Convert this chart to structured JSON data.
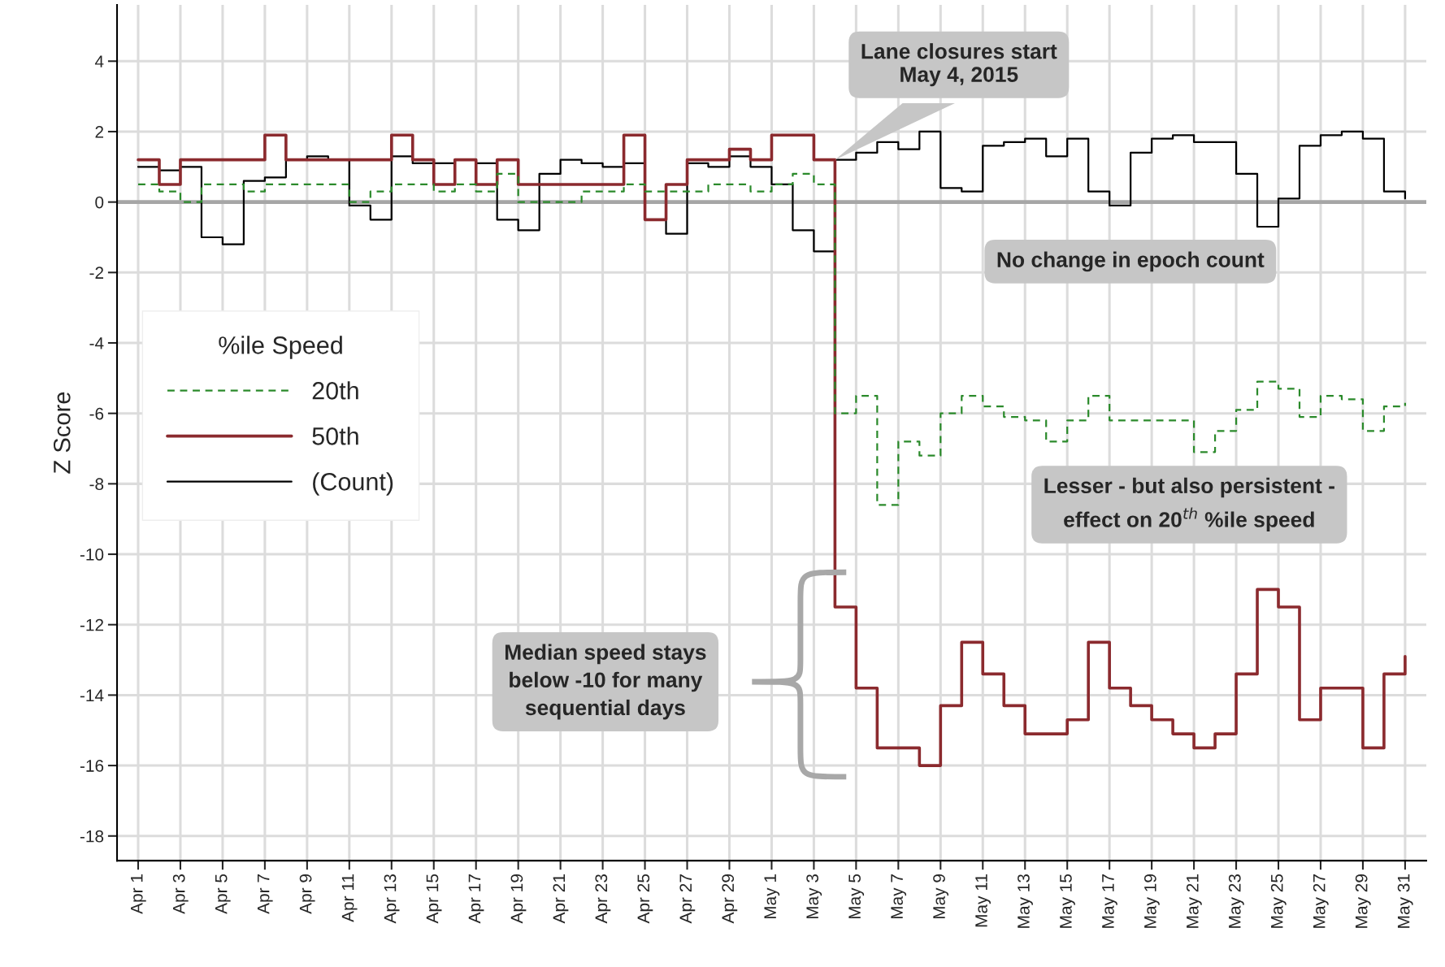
{
  "chart_data": {
    "type": "step",
    "ylabel": "Z Score",
    "legend_title": "%ile Speed",
    "x": [
      "2015-04-01",
      "2015-04-02",
      "2015-04-03",
      "2015-04-04",
      "2015-04-05",
      "2015-04-06",
      "2015-04-07",
      "2015-04-08",
      "2015-04-09",
      "2015-04-10",
      "2015-04-11",
      "2015-04-12",
      "2015-04-13",
      "2015-04-14",
      "2015-04-15",
      "2015-04-16",
      "2015-04-17",
      "2015-04-18",
      "2015-04-19",
      "2015-04-20",
      "2015-04-21",
      "2015-04-22",
      "2015-04-23",
      "2015-04-24",
      "2015-04-25",
      "2015-04-26",
      "2015-04-27",
      "2015-04-28",
      "2015-04-29",
      "2015-04-30",
      "2015-05-01",
      "2015-05-02",
      "2015-05-03",
      "2015-05-04",
      "2015-05-05",
      "2015-05-06",
      "2015-05-07",
      "2015-05-08",
      "2015-05-09",
      "2015-05-10",
      "2015-05-11",
      "2015-05-12",
      "2015-05-13",
      "2015-05-14",
      "2015-05-15",
      "2015-05-16",
      "2015-05-17",
      "2015-05-18",
      "2015-05-19",
      "2015-05-20",
      "2015-05-21",
      "2015-05-22",
      "2015-05-23",
      "2015-05-24",
      "2015-05-25",
      "2015-05-26",
      "2015-05-27",
      "2015-05-28",
      "2015-05-29",
      "2015-05-30",
      "2015-05-31"
    ],
    "series": [
      {
        "name": "20th",
        "color": "#2b8a2b",
        "line_style": "dashed",
        "values": [
          0.5,
          0.3,
          0.0,
          0.5,
          0.5,
          0.3,
          0.5,
          0.5,
          0.5,
          0.5,
          0.0,
          0.3,
          0.5,
          0.5,
          0.3,
          0.5,
          0.3,
          0.8,
          0.0,
          0.0,
          0.0,
          0.3,
          0.3,
          0.5,
          0.3,
          0.3,
          0.3,
          0.5,
          0.5,
          0.3,
          0.5,
          0.8,
          0.5,
          -6.0,
          -5.5,
          -8.6,
          -6.8,
          -7.2,
          -6.0,
          -5.5,
          -5.8,
          -6.1,
          -6.2,
          -6.8,
          -6.2,
          -5.5,
          -6.2,
          -6.2,
          -6.2,
          -6.2,
          -7.1,
          -6.5,
          -5.9,
          -5.1,
          -5.3,
          -6.1,
          -5.5,
          -5.6,
          -6.5,
          -5.8,
          -5.7
        ]
      },
      {
        "name": "50th",
        "color": "#8b2a2e",
        "line_style": "solid",
        "values": [
          1.2,
          0.5,
          1.2,
          1.2,
          1.2,
          1.2,
          1.9,
          1.2,
          1.2,
          1.2,
          1.2,
          1.2,
          1.9,
          1.2,
          0.5,
          1.2,
          0.5,
          1.2,
          0.5,
          0.5,
          0.5,
          0.5,
          0.5,
          1.9,
          -0.5,
          0.5,
          1.2,
          1.2,
          1.5,
          1.2,
          1.9,
          1.9,
          1.2,
          -11.5,
          -13.8,
          -15.5,
          -15.5,
          -16.0,
          -14.3,
          -12.5,
          -13.4,
          -14.3,
          -15.1,
          -15.1,
          -14.7,
          -12.5,
          -13.8,
          -14.3,
          -14.7,
          -15.1,
          -15.5,
          -15.1,
          -13.4,
          -11.0,
          -11.5,
          -14.7,
          -13.8,
          -13.8,
          -15.5,
          -13.4,
          -12.9
        ]
      },
      {
        "name": "(Count)",
        "color": "#000000",
        "line_style": "solid",
        "values": [
          1.0,
          0.9,
          1.0,
          -1.0,
          -1.2,
          0.6,
          0.7,
          1.2,
          1.3,
          1.2,
          -0.1,
          -0.5,
          1.3,
          1.1,
          1.1,
          1.2,
          1.1,
          -0.5,
          -0.8,
          0.8,
          1.2,
          1.1,
          1.0,
          1.1,
          -0.5,
          -0.9,
          1.1,
          1.0,
          1.3,
          1.0,
          0.5,
          -0.8,
          -1.4,
          1.2,
          1.4,
          1.7,
          1.5,
          2.0,
          0.4,
          0.3,
          1.6,
          1.7,
          1.8,
          1.3,
          1.8,
          0.3,
          -0.1,
          1.4,
          1.8,
          1.9,
          1.7,
          1.7,
          0.8,
          -0.7,
          0.1,
          1.6,
          1.9,
          2.0,
          1.8,
          0.3,
          0.1
        ]
      }
    ],
    "ylim": [
      -18.7,
      5.6
    ],
    "yticks": [
      -18,
      -16,
      -14,
      -12,
      -10,
      -8,
      -6,
      -4,
      -2,
      0,
      2,
      4
    ],
    "xlim": [
      "2015-03-31",
      "2015-06-01"
    ],
    "xticks": [
      {
        "value": "2015-04-01",
        "label": "Apr 1"
      },
      {
        "value": "2015-04-03",
        "label": "Apr 3"
      },
      {
        "value": "2015-04-05",
        "label": "Apr 5"
      },
      {
        "value": "2015-04-07",
        "label": "Apr 7"
      },
      {
        "value": "2015-04-09",
        "label": "Apr 9"
      },
      {
        "value": "2015-04-11",
        "label": "Apr 11"
      },
      {
        "value": "2015-04-13",
        "label": "Apr 13"
      },
      {
        "value": "2015-04-15",
        "label": "Apr 15"
      },
      {
        "value": "2015-04-17",
        "label": "Apr 17"
      },
      {
        "value": "2015-04-19",
        "label": "Apr 19"
      },
      {
        "value": "2015-04-21",
        "label": "Apr 21"
      },
      {
        "value": "2015-04-23",
        "label": "Apr 23"
      },
      {
        "value": "2015-04-25",
        "label": "Apr 25"
      },
      {
        "value": "2015-04-27",
        "label": "Apr 27"
      },
      {
        "value": "2015-04-29",
        "label": "Apr 29"
      },
      {
        "value": "2015-05-01",
        "label": "May 1"
      },
      {
        "value": "2015-05-03",
        "label": "May 3"
      },
      {
        "value": "2015-05-05",
        "label": "May 5"
      },
      {
        "value": "2015-05-07",
        "label": "May 7"
      },
      {
        "value": "2015-05-09",
        "label": "May 9"
      },
      {
        "value": "2015-05-11",
        "label": "May 11"
      },
      {
        "value": "2015-05-13",
        "label": "May 13"
      },
      {
        "value": "2015-05-15",
        "label": "May 15"
      },
      {
        "value": "2015-05-17",
        "label": "May 17"
      },
      {
        "value": "2015-05-19",
        "label": "May 19"
      },
      {
        "value": "2015-05-21",
        "label": "May 21"
      },
      {
        "value": "2015-05-23",
        "label": "May 23"
      },
      {
        "value": "2015-05-25",
        "label": "May 25"
      },
      {
        "value": "2015-05-27",
        "label": "May 27"
      },
      {
        "value": "2015-05-29",
        "label": "May 29"
      },
      {
        "value": "2015-05-31",
        "label": "May 31"
      }
    ],
    "ref_lines": [
      {
        "axis": "y",
        "value": 0,
        "color": "#a6a6a6"
      }
    ],
    "grid": true,
    "legend": "left",
    "annotations": [
      {
        "text": "Lane closures start\nMay 4, 2015",
        "x": "2015-05-04",
        "y": 1.2
      },
      "No change in epoch count",
      "Lesser - but also persistent -\neffect on 20$^{th}$ %ile speed",
      "Median speed stays\nbelow -10 for many\nsequential days"
    ]
  }
}
